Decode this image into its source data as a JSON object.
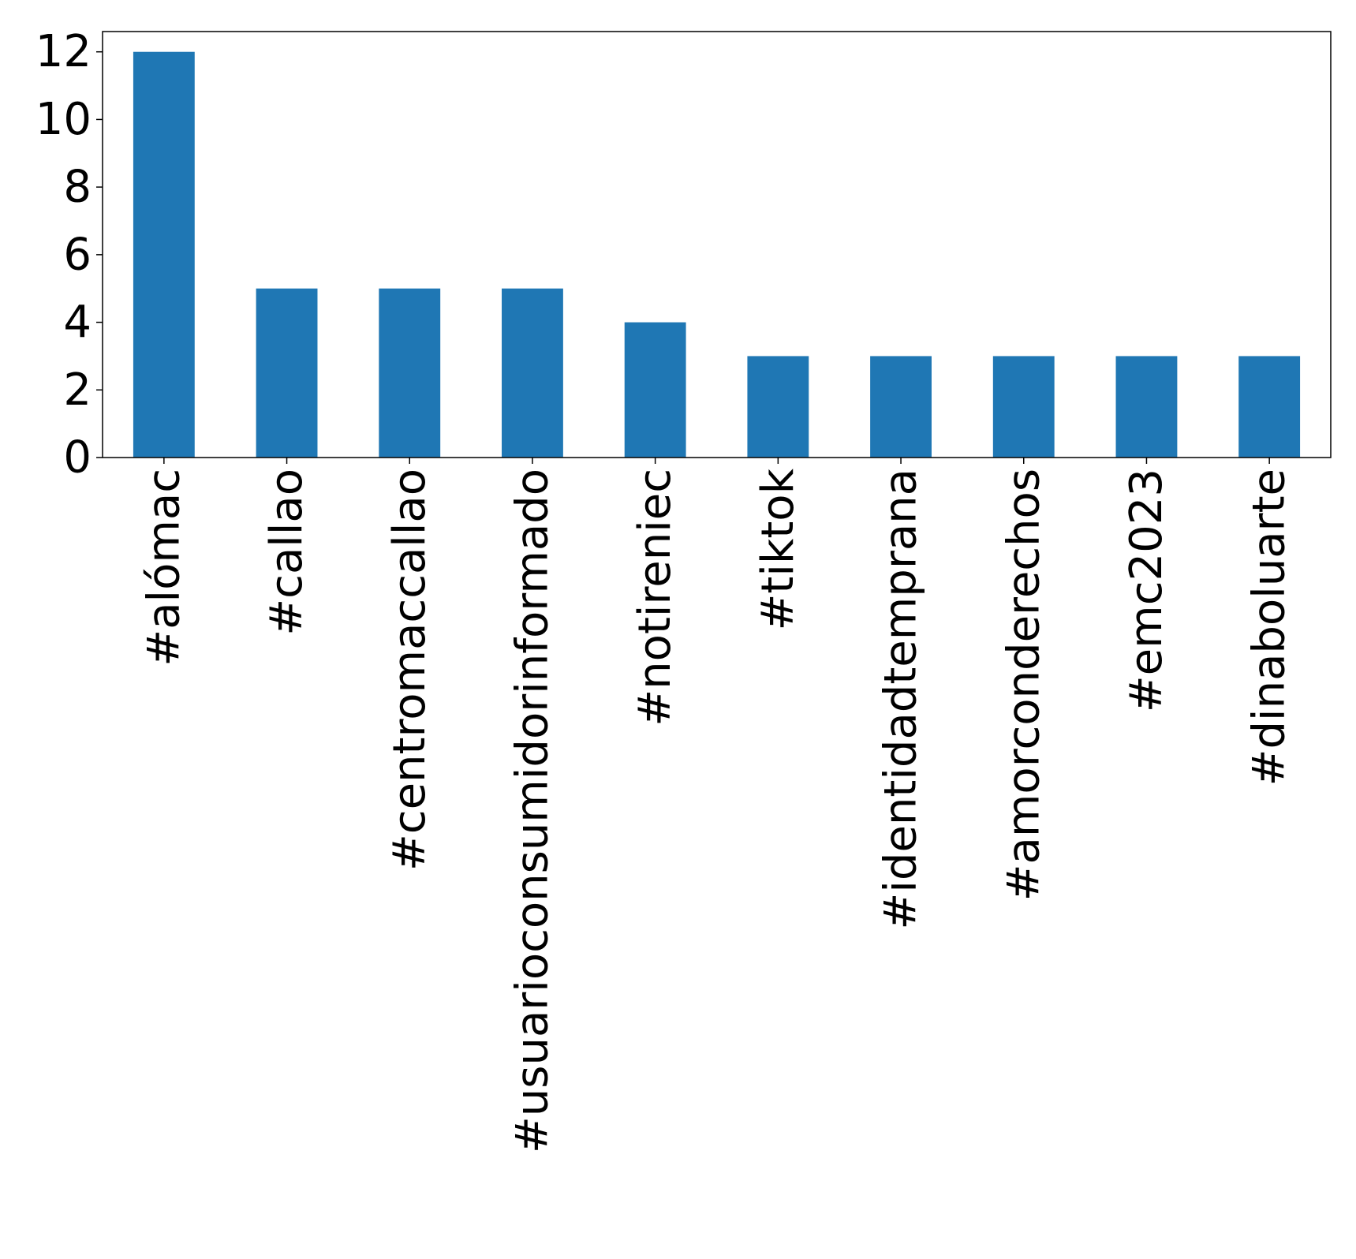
{
  "chart_data": {
    "type": "bar",
    "title": "",
    "xlabel": "",
    "ylabel": "",
    "categories": [
      "#alómac",
      "#callao",
      "#centromaccallao",
      "#usuarioconsumidorinformado",
      "#notireniec",
      "#tiktok",
      "#identidadtemprana",
      "#amorconderechos",
      "#emc2023",
      "#dinaboluarte"
    ],
    "values": [
      12,
      5,
      5,
      5,
      4,
      3,
      3,
      3,
      3,
      3
    ],
    "ylim": [
      0,
      12.6
    ],
    "yticks": [
      "0",
      "2",
      "4",
      "6",
      "8",
      "10",
      "12"
    ],
    "grid": false,
    "legend": "none",
    "bar_color": "#1f77b4"
  }
}
